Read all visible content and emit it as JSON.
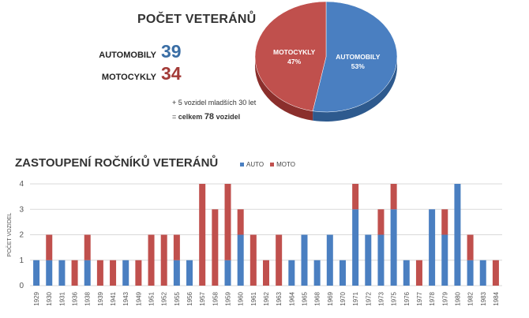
{
  "summary": {
    "title": "POČET VETERÁNŮ",
    "automobily_label": "AUTOMOBILY",
    "automobily_value": "39",
    "motocykly_label": "MOTOCYKLY",
    "motocykly_value": "34",
    "note_line1": "+ 5 vozidel mladších 30 let",
    "note_prefix": "= ",
    "note_celkem": "celkem",
    "note_total": "78",
    "note_vozidel": "vozidel"
  },
  "colors": {
    "auto": "#4a7fc1",
    "moto": "#c0504d",
    "auto_dark": "#2e5a8e",
    "moto_dark": "#8b2f2c",
    "auto_text": "#3a6ea5",
    "moto_text": "#a33b38"
  },
  "chart_data": [
    {
      "type": "pie",
      "slices": [
        {
          "label": "AUTOMOBILY",
          "percent_label": "53%",
          "value": 53
        },
        {
          "label": "MOTOCYKLY",
          "percent_label": "47%",
          "value": 47
        }
      ]
    },
    {
      "type": "bar",
      "stacked": true,
      "title": "ZASTOUPENÍ ROČNÍKŮ VETERÁNŮ",
      "ylabel": "POČET VOZIDEL",
      "ylim": [
        0,
        4
      ],
      "yticks": [
        "0",
        "1",
        "2",
        "3",
        "4"
      ],
      "legend_position": "top",
      "categories": [
        "1929",
        "1930",
        "1931",
        "1936",
        "1938",
        "1939",
        "1941",
        "1943",
        "1949",
        "1951",
        "1952",
        "1955",
        "1956",
        "1957",
        "1958",
        "1959",
        "1960",
        "1961",
        "1962",
        "1963",
        "1964",
        "1965",
        "1968",
        "1969",
        "1970",
        "1971",
        "1972",
        "1973",
        "1975",
        "1976",
        "1977",
        "1978",
        "1979",
        "1980",
        "1982",
        "1983",
        "1984"
      ],
      "series": [
        {
          "name": "AUTO",
          "values": [
            1,
            1,
            1,
            0,
            1,
            0,
            0,
            1,
            0,
            0,
            0,
            1,
            1,
            0,
            0,
            1,
            2,
            0,
            0,
            0,
            1,
            2,
            1,
            2,
            1,
            3,
            2,
            2,
            3,
            1,
            0,
            3,
            2,
            4,
            1,
            1,
            0
          ]
        },
        {
          "name": "MOTO",
          "values": [
            0,
            1,
            0,
            1,
            1,
            1,
            1,
            0,
            1,
            2,
            2,
            1,
            0,
            4,
            3,
            3,
            1,
            2,
            1,
            2,
            0,
            0,
            0,
            0,
            0,
            1,
            0,
            1,
            1,
            0,
            1,
            0,
            1,
            0,
            1,
            0,
            1
          ]
        }
      ]
    }
  ]
}
